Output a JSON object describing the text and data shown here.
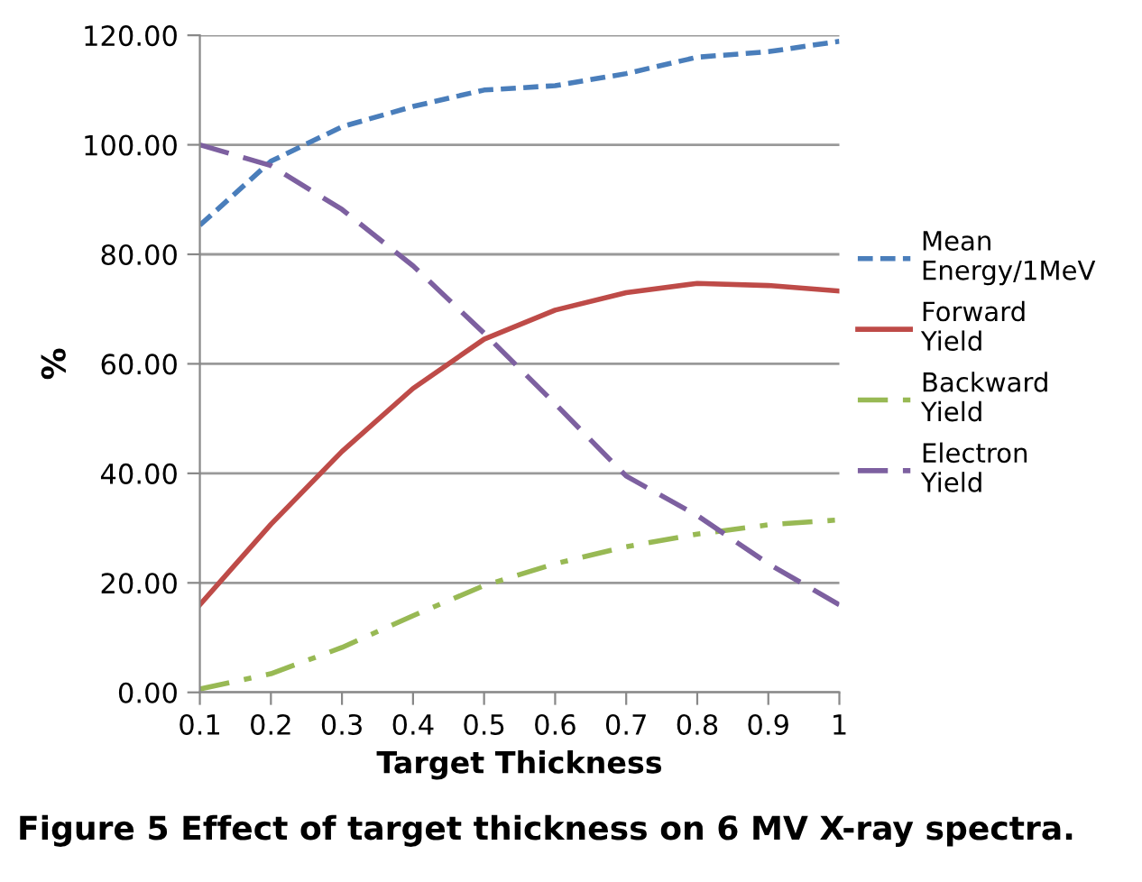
{
  "chart_data": {
    "type": "line",
    "xlabel": "Target Thickness",
    "ylabel": "%",
    "x": [
      0.1,
      0.2,
      0.3,
      0.4,
      0.5,
      0.6,
      0.7,
      0.8,
      0.9,
      1.0
    ],
    "series": [
      {
        "name": "Mean Energy/1MeV",
        "color": "#4a7ebb",
        "line_style": "dashed",
        "values": [
          85.3,
          97,
          103.3,
          107,
          110,
          110.8,
          113,
          116,
          117,
          118.9
        ]
      },
      {
        "name": "Forward Yield",
        "color": "#be4b48",
        "line_style": "solid",
        "values": [
          16,
          30.7,
          44,
          55.5,
          64.5,
          69.8,
          73,
          74.7,
          74.3,
          73.3
        ]
      },
      {
        "name": "Backward Yield",
        "color": "#98b954",
        "line_style": "dashdot",
        "values": [
          0.6,
          3.4,
          8.2,
          14,
          19.5,
          23.5,
          26.6,
          28.9,
          30.6,
          31.5
        ]
      },
      {
        "name": "Electron Yield",
        "color": "#7d60a0",
        "line_style": "longdash",
        "values": [
          100,
          96.2,
          88.2,
          77.9,
          65.6,
          52.7,
          39.5,
          32.3,
          23.5,
          16
        ]
      }
    ],
    "xlim": [
      0.1,
      1.0
    ],
    "xticks": [
      {
        "value": 0.1,
        "label": "0.1"
      },
      {
        "value": 0.2,
        "label": "0.2"
      },
      {
        "value": 0.3,
        "label": "0.3"
      },
      {
        "value": 0.4,
        "label": "0.4"
      },
      {
        "value": 0.5,
        "label": "0.5"
      },
      {
        "value": 0.6,
        "label": "0.6"
      },
      {
        "value": 0.7,
        "label": "0.7"
      },
      {
        "value": 0.8,
        "label": "0.8"
      },
      {
        "value": 0.9,
        "label": "0.9"
      },
      {
        "value": 1.0,
        "label": "1"
      }
    ],
    "ylim": [
      0,
      120
    ],
    "yticks": [
      {
        "value": 0,
        "label": "0.00"
      },
      {
        "value": 20,
        "label": "20.00"
      },
      {
        "value": 40,
        "label": "40.00"
      },
      {
        "value": 60,
        "label": "60.00"
      },
      {
        "value": 80,
        "label": "80.00"
      },
      {
        "value": 100,
        "label": "100.00"
      },
      {
        "value": 120,
        "label": "120.00"
      }
    ],
    "grid": "y",
    "legend": "right",
    "marker": "none",
    "annotations": [
      "Figure 5 Effect of target thickness on 6 MV X-ray spectra."
    ]
  }
}
